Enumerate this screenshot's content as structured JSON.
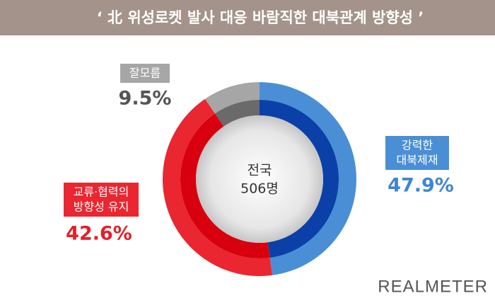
{
  "chart_data": {
    "type": "donut",
    "title": "‘ 北 위성로켓 발사 대응 바람직한 대북관계 방향성 ’",
    "center_label": [
      "전국",
      "506명"
    ],
    "categories": [
      [
        "강력한",
        "대북제재"
      ],
      [
        "교류·협력의",
        "방향성 유지"
      ],
      [
        "잘모름"
      ]
    ],
    "values": [
      47.9,
      42.6,
      9.5
    ],
    "value_labels": [
      "47.9%",
      "42.6%",
      "9.5%"
    ],
    "colors": [
      "#4a8fd6",
      "#ea2630",
      "#a6a6a6"
    ],
    "inner_colors": [
      "#0a40a8",
      "#d8000f",
      "#6a6a6a"
    ],
    "value_label_colors": [
      "#3f86d0",
      "#e3202a",
      "#555555"
    ],
    "brand": "REALMETER"
  }
}
